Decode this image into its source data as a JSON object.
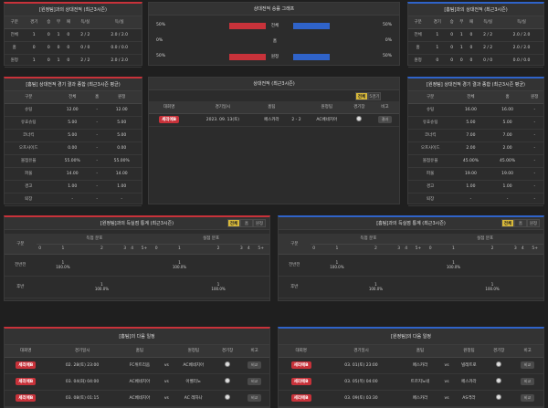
{
  "h2h_home": {
    "title": "[원정팀]과의 상대전적 (최근3시즌)",
    "cols": [
      "구분",
      "경기",
      "승",
      "무",
      "패",
      "득/실",
      "득/실"
    ],
    "rows": [
      [
        "전체",
        "1",
        "0",
        "1",
        "0",
        "2 / 2",
        "2.0 / 2.0"
      ],
      [
        "홈",
        "0",
        "0",
        "0",
        "0",
        "0 / 0",
        "0.0 / 0.0"
      ],
      [
        "원정",
        "1",
        "0",
        "1",
        "0",
        "2 / 2",
        "2.0 / 2.0"
      ]
    ]
  },
  "graph": {
    "title": "상대전적 승률 그래프",
    "rows": [
      {
        "left": "50%",
        "label": "전체",
        "right": "50%",
        "lval": 0.5,
        "rval": 0.5
      },
      {
        "left": "0%",
        "label": "홈",
        "right": "0%",
        "lval": 0,
        "rval": 0
      },
      {
        "left": "50%",
        "label": "원정",
        "right": "50%",
        "lval": 0.5,
        "rval": 0.5
      }
    ]
  },
  "h2h_away": {
    "title": "[홈팀]과의 상대전적 (최근3시즌)",
    "cols": [
      "구분",
      "경기",
      "승",
      "무",
      "패",
      "득/실",
      "득/실"
    ],
    "rows": [
      [
        "전체",
        "1",
        "0",
        "1",
        "0",
        "2 / 2",
        "2.0 / 2.0"
      ],
      [
        "홈",
        "1",
        "0",
        "1",
        "0",
        "2 / 2",
        "2.0 / 2.0"
      ],
      [
        "원정",
        "0",
        "0",
        "0",
        "0",
        "0 / 0",
        "0.0 / 0.0"
      ]
    ]
  },
  "avg_home": {
    "title": "[홈팀] 상대전적 경기 결과 종합 (최근3시즌 평균)",
    "cols": [
      "구분",
      "전체",
      "홈",
      "원정"
    ],
    "rows": [
      [
        "슈팅",
        "12.00",
        "-",
        "12.00"
      ],
      [
        "유효슈팅",
        "5.00",
        "-",
        "5.00"
      ],
      [
        "코너킥",
        "5.00",
        "-",
        "5.00"
      ],
      [
        "오프사이드",
        "0.00",
        "-",
        "0.00"
      ],
      [
        "볼점유율",
        "55.00%",
        "-",
        "55.00%"
      ],
      [
        "파울",
        "14.00",
        "-",
        "14.00"
      ],
      [
        "경고",
        "1.00",
        "-",
        "1.00"
      ],
      [
        "퇴장",
        "-",
        "-",
        "-"
      ]
    ]
  },
  "recent": {
    "title": "상대전적 (최근3시즌)",
    "tabs": [
      "전체",
      "5경기"
    ],
    "cols": [
      "대회명",
      "경기일시",
      "홈팀",
      "vs",
      "원정팀",
      "경기장",
      "비고"
    ],
    "row": {
      "league": "세리에B",
      "date": "2023. 09. 13(토)",
      "home": "페스카라",
      "score": "2 - 2",
      "away": "AC베네치아",
      "note": "결과"
    }
  },
  "avg_away": {
    "title": "[원정팀] 상대전적 경기 결과 종합 (최근3시즌 평균)",
    "cols": [
      "구분",
      "전체",
      "홈",
      "원정"
    ],
    "rows": [
      [
        "슈팅",
        "16.00",
        "16.00",
        "-"
      ],
      [
        "유효슈팅",
        "5.00",
        "5.00",
        "-"
      ],
      [
        "코너킥",
        "7.00",
        "7.00",
        "-"
      ],
      [
        "오프사이드",
        "2.00",
        "2.00",
        "-"
      ],
      [
        "볼점유율",
        "45.00%",
        "45.00%",
        "-"
      ],
      [
        "파울",
        "19.00",
        "19.00",
        "-"
      ],
      [
        "경고",
        "1.00",
        "1.00",
        "-"
      ],
      [
        "퇴장",
        "-",
        "-",
        "-"
      ]
    ]
  },
  "dist_home": {
    "title": "[원정팀]과의 득실점 통계 (최근3시즌)",
    "tabs": [
      "전체",
      "홈",
      "원정"
    ],
    "group_goal": "득점 분포",
    "group_concede": "실점 분포",
    "label_col": "구분",
    "heads": [
      "0",
      "1",
      "2",
      "3",
      "4",
      "5+",
      "0",
      "1",
      "2",
      "3",
      "4",
      "5+"
    ],
    "rows": [
      {
        "label": "전반전",
        "cells": [
          "",
          "1\n100.0%",
          "",
          "",
          "",
          "",
          "",
          "1\n100.0%",
          "",
          "",
          "",
          ""
        ]
      },
      {
        "label": "후반",
        "cells": [
          "",
          "",
          "1\n100.0%",
          "",
          "",
          "",
          "",
          "",
          "1\n100.0%",
          "",
          "",
          ""
        ]
      }
    ]
  },
  "dist_away": {
    "title": "[홈팀]과의 득실점 통계 (최근3시즌)",
    "tabs": [
      "전체",
      "홈",
      "원정"
    ],
    "group_goal": "득점 분포",
    "group_concede": "실점 분포",
    "label_col": "구분",
    "heads": [
      "0",
      "1",
      "2",
      "3",
      "4",
      "5+",
      "0",
      "1",
      "2",
      "3",
      "4",
      "5+"
    ],
    "rows": [
      {
        "label": "전반전",
        "cells": [
          "",
          "1\n100.0%",
          "",
          "",
          "",
          "",
          "",
          "1\n100.0%",
          "",
          "",
          "",
          ""
        ]
      },
      {
        "label": "후반",
        "cells": [
          "",
          "",
          "1\n100.0%",
          "",
          "",
          "",
          "",
          "",
          "1\n100.0%",
          "",
          "",
          ""
        ]
      }
    ]
  },
  "next_home": {
    "title": "[홈팀]의 다음 일정",
    "cols": [
      "대회명",
      "경기일시",
      "홈팀",
      "vs",
      "원정팀",
      "경기장",
      "비고"
    ],
    "rows": [
      {
        "league": "세리에B",
        "date": "02. 28(토) 23:00",
        "home": "FC위트리움",
        "away": "AC베네치아",
        "note": "비교"
      },
      {
        "league": "세리에B",
        "date": "03. 04(화) 04:00",
        "home": "AC베네치아",
        "away": "아벨리노",
        "note": "비교"
      },
      {
        "league": "세리에B",
        "date": "03. 08(토) 01:15",
        "home": "AC베네치아",
        "away": "AC 레자나",
        "note": "비교"
      }
    ]
  },
  "next_away": {
    "title": "[원정팀]의 다음 일정",
    "cols": [
      "대회명",
      "경기일시",
      "홈팀",
      "vs",
      "원정팀",
      "경기장",
      "비고"
    ],
    "rows": [
      {
        "league": "세리에B",
        "date": "03. 01(토) 23:00",
        "home": "페스카라",
        "away": "빌레트로",
        "note": "비교"
      },
      {
        "league": "세리에B",
        "date": "03. 05(목) 04:00",
        "home": "트르지노네",
        "away": "페스카라",
        "note": "비교"
      },
      {
        "league": "세리에B",
        "date": "03. 09(토) 03:30",
        "home": "페스카라",
        "away": "AS격라",
        "note": "비교"
      }
    ]
  },
  "colors": {
    "home": "#c8323a",
    "away": "#2f63c9",
    "tab_on": "#d8b93a"
  },
  "icons": {
    "stadium": "soccer-ball-icon"
  }
}
